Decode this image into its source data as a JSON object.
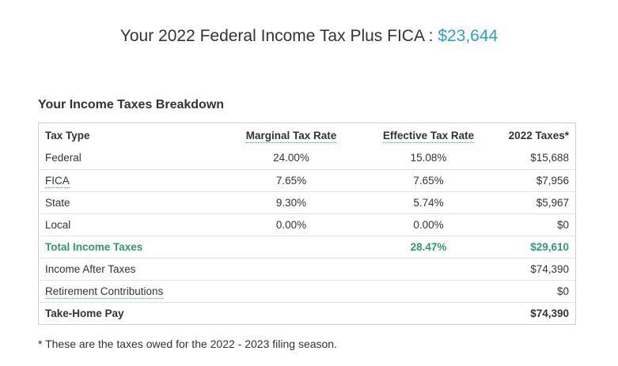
{
  "header": {
    "title_prefix": "Your 2022 Federal Income Tax Plus FICA : ",
    "title_amount": "$23,644",
    "accent_color": "#2a9fd6"
  },
  "breakdown": {
    "section_title": "Your Income Taxes Breakdown",
    "columns": [
      "Tax Type",
      "Marginal Tax Rate",
      "Effective Tax Rate",
      "2022 Taxes*"
    ],
    "rows": [
      {
        "type": "Federal",
        "marginal": "24.00%",
        "effective": "15.08%",
        "taxes": "$15,688"
      },
      {
        "type": "FICA",
        "marginal": "7.65%",
        "effective": "7.65%",
        "taxes": "$7,956"
      },
      {
        "type": "State",
        "marginal": "9.30%",
        "effective": "5.74%",
        "taxes": "$5,967"
      },
      {
        "type": "Local",
        "marginal": "0.00%",
        "effective": "0.00%",
        "taxes": "$0"
      },
      {
        "type": "Total Income Taxes",
        "marginal": "",
        "effective": "28.47%",
        "taxes": "$29,610"
      },
      {
        "type": "Income After Taxes",
        "marginal": "",
        "effective": "",
        "taxes": "$74,390"
      },
      {
        "type": "Retirement Contributions",
        "marginal": "",
        "effective": "",
        "taxes": "$0"
      },
      {
        "type": "Take-Home Pay",
        "marginal": "",
        "effective": "",
        "taxes": "$74,390"
      }
    ],
    "total_color": "#2d9b71"
  },
  "footnote": "* These are the taxes owed for the 2022 - 2023 filing season."
}
